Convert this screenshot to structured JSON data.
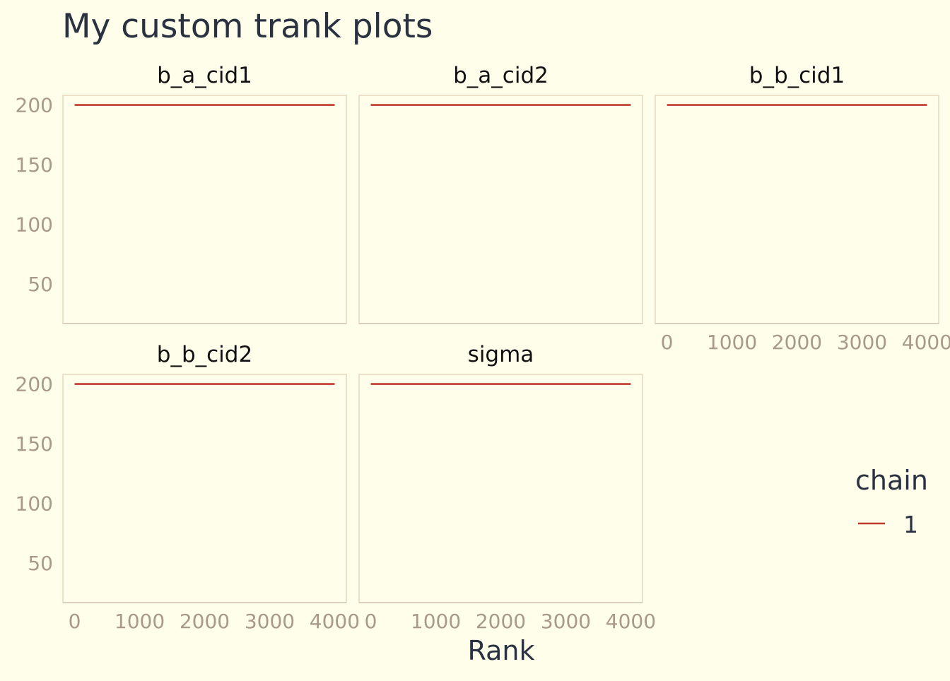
{
  "chart_data": {
    "type": "line",
    "title": "My custom trank plots",
    "xlabel": "Rank",
    "ylabel": "",
    "xlim": [
      -180,
      4180
    ],
    "ylim": [
      17,
      208
    ],
    "x_ticks": [
      0,
      1000,
      2000,
      3000,
      4000
    ],
    "y_ticks": [
      50,
      100,
      150,
      200
    ],
    "grid": false,
    "legend": {
      "title": "chain",
      "position": "right",
      "entries": [
        "1"
      ]
    },
    "colors": {
      "background": "#fffeea",
      "series": "#c0392b",
      "panel_border": "#ede0c8",
      "tick_label": "#a89a88",
      "title": "#2a3140",
      "strip_label": "#111111"
    },
    "panels": [
      {
        "name": "b_a_cid1",
        "show_x_ticks": false,
        "show_y_ticks": true,
        "series": [
          {
            "name": "1",
            "x": [
              0,
              4000
            ],
            "y": [
              200,
              200
            ]
          }
        ]
      },
      {
        "name": "b_a_cid2",
        "show_x_ticks": false,
        "show_y_ticks": false,
        "series": [
          {
            "name": "1",
            "x": [
              0,
              4000
            ],
            "y": [
              200,
              200
            ]
          }
        ]
      },
      {
        "name": "b_b_cid1",
        "show_x_ticks": true,
        "show_y_ticks": false,
        "series": [
          {
            "name": "1",
            "x": [
              0,
              4000
            ],
            "y": [
              200,
              200
            ]
          }
        ]
      },
      {
        "name": "b_b_cid2",
        "show_x_ticks": true,
        "show_y_ticks": true,
        "series": [
          {
            "name": "1",
            "x": [
              0,
              4000
            ],
            "y": [
              200,
              200
            ]
          }
        ]
      },
      {
        "name": "sigma",
        "show_x_ticks": true,
        "show_y_ticks": false,
        "series": [
          {
            "name": "1",
            "x": [
              0,
              4000
            ],
            "y": [
              200,
              200
            ]
          }
        ]
      }
    ]
  }
}
